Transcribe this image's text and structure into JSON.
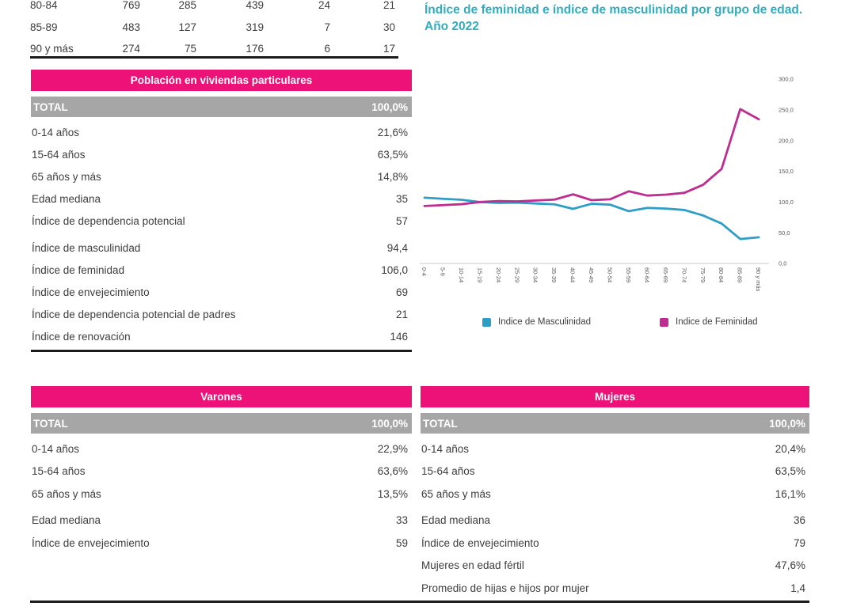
{
  "colors": {
    "pink": "#EC1277",
    "gray_bar": "#A6A6A6",
    "teal": "#33ACBE",
    "blue_line": "#2E9EC6",
    "magenta_line": "#BE2D8F",
    "axis_text": "#595959",
    "axis_line": "#C9C9C9"
  },
  "top_table": {
    "rows": [
      {
        "label": "80-84",
        "values": [
          "769",
          "285",
          "439",
          "24",
          "21"
        ]
      },
      {
        "label": "85-89",
        "values": [
          "483",
          "127",
          "319",
          "7",
          "30"
        ]
      },
      {
        "label": "90 y más",
        "values": [
          "274",
          "75",
          "176",
          "6",
          "17"
        ]
      }
    ]
  },
  "poblacion_table": {
    "title": "Población en viviendas particulares",
    "total_label": "TOTAL",
    "total_value": "100,0%",
    "rows": [
      {
        "label": "0-14 años",
        "value": "21,6%"
      },
      {
        "label": "15-64 años",
        "value": "63,5%"
      },
      {
        "label": "65 años y más",
        "value": "14,8%"
      },
      {
        "label": "Edad mediana",
        "value": "35"
      },
      {
        "label": "Índice de dependencia potencial",
        "value": "57"
      },
      {
        "label": "Índice de masculinidad",
        "value": "94,4",
        "gap": true
      },
      {
        "label": "Índice de feminidad",
        "value": "106,0"
      },
      {
        "label": "Índice de envejecimiento",
        "value": "69"
      },
      {
        "label": "Índice de dependencia potencial de padres",
        "value": "21"
      },
      {
        "label": "Índice de renovación",
        "value": "146"
      }
    ]
  },
  "chart": {
    "title_line1": "Índice de feminidad e índice de masculinidad por grupo de edad.",
    "title_line2": "Año 2022"
  },
  "chart_data": {
    "type": "line",
    "title": "Índice de feminidad e índice de masculinidad por grupo de edad. Año 2022",
    "categories": [
      "0-4",
      "5-9",
      "10-14",
      "15-19",
      "20-24",
      "25-29",
      "30-34",
      "35-39",
      "40-44",
      "45-49",
      "50-54",
      "55-59",
      "60-64",
      "65-69",
      "70-74",
      "75-79",
      "80-84",
      "85-89",
      "90 y más"
    ],
    "series": [
      {
        "name": "Indice de Masculinidad",
        "color": "#2E9EC6",
        "values": [
          107.0,
          105.3,
          103.6,
          100.0,
          98.5,
          99.0,
          97.6,
          96.2,
          88.9,
          97.1,
          95.7,
          85.1,
          90.5,
          89.3,
          87.0,
          78.1,
          64.9,
          39.8,
          42.6
        ]
      },
      {
        "name": "Indice de Feminidad",
        "color": "#BE2D8F",
        "values": [
          93.5,
          95.0,
          96.5,
          100.0,
          101.5,
          101.0,
          102.5,
          104.0,
          112.5,
          103.0,
          104.5,
          117.5,
          110.5,
          112.0,
          115.0,
          128.0,
          154.0,
          251.2,
          234.7
        ]
      }
    ],
    "ylim": [
      0,
      300
    ],
    "yticks": [
      "0,0",
      "50,0",
      "100,0",
      "150,0",
      "200,0",
      "250,0",
      "300,0"
    ],
    "ytick_values": [
      0,
      50,
      100,
      150,
      200,
      250,
      300
    ],
    "grid": false,
    "y_axis_side": "right",
    "legend_position": "bottom"
  },
  "legend": [
    {
      "label": "Indice de Masculinidad",
      "color": "#2E9EC6"
    },
    {
      "label": "Indice de Feminidad",
      "color": "#BE2D8F"
    }
  ],
  "varones_table": {
    "title": "Varones",
    "total_label": "TOTAL",
    "total_value": "100,0%",
    "rows": [
      {
        "label": "0-14 años",
        "value": "22,9%"
      },
      {
        "label": "15-64 años",
        "value": "63,6%"
      },
      {
        "label": "65 años y más",
        "value": "13,5%"
      },
      {
        "label": "Edad mediana",
        "value": "33",
        "gap": true
      },
      {
        "label": "Índice de envejecimiento",
        "value": "59"
      }
    ]
  },
  "mujeres_table": {
    "title": "Mujeres",
    "total_label": "TOTAL",
    "total_value": "100,0%",
    "rows": [
      {
        "label": "0-14 años",
        "value": "20,4%"
      },
      {
        "label": "15-64 años",
        "value": "63,5%"
      },
      {
        "label": "65 años y más",
        "value": "16,1%"
      },
      {
        "label": "Edad mediana",
        "value": "36",
        "gap": true
      },
      {
        "label": "Índice de envejecimiento",
        "value": "79"
      },
      {
        "label": "Mujeres en edad fértil",
        "value": "47,6%"
      },
      {
        "label": "Promedio de hijas e hijos por mujer",
        "value": "1,4"
      }
    ]
  }
}
